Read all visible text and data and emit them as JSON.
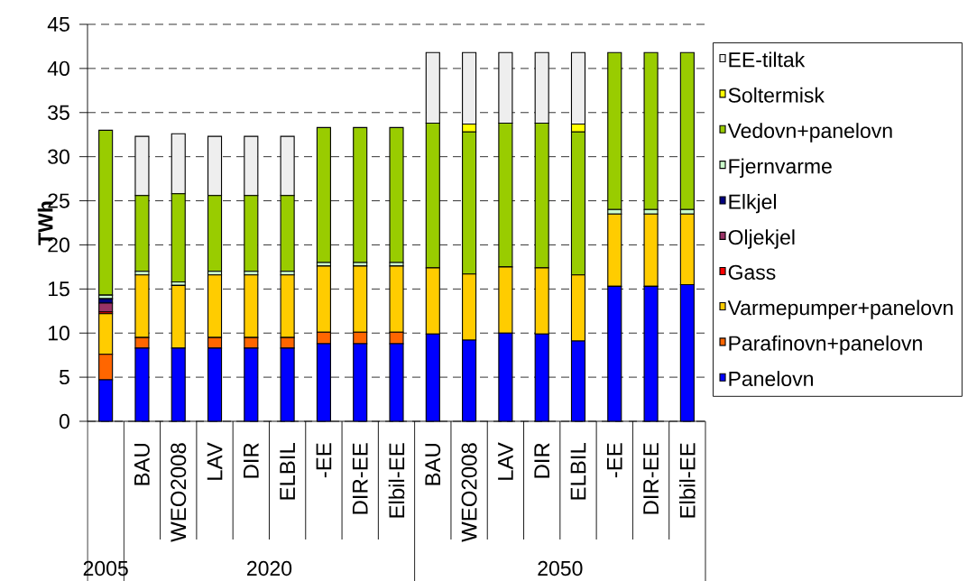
{
  "chart_data": {
    "type": "bar",
    "stacked": true,
    "ylabel": "TWh",
    "categories": [
      null,
      "BAU",
      "WEO2008",
      "LAV",
      "DIR",
      "ELBIL",
      "-EE",
      "DIR-EE",
      "Elbil-EE",
      "BAU",
      "WEO2008",
      "LAV",
      "DIR",
      "ELBIL",
      "-EE",
      "DIR-EE",
      "Elbil-EE"
    ],
    "annotations": [
      "2005",
      "2020",
      "2050"
    ],
    "ylim": [
      0,
      45
    ],
    "yticks": [
      0,
      5,
      10,
      15,
      20,
      25,
      30,
      35,
      40,
      45
    ],
    "grid": "y",
    "legend": "right",
    "series": [
      {
        "name": "Panelovn",
        "color": "#0000ff",
        "values": [
          4.7,
          8.3,
          8.3,
          8.3,
          8.3,
          8.3,
          8.8,
          8.8,
          8.8,
          9.9,
          9.2,
          10.0,
          9.9,
          9.1,
          15.3,
          15.3,
          15.5
        ]
      },
      {
        "name": "Parafinovn+panelovn",
        "color": "#ff6600",
        "values": [
          2.9,
          1.2,
          0,
          1.2,
          1.2,
          1.2,
          1.3,
          1.3,
          1.3,
          0,
          0,
          0,
          0,
          0,
          0,
          0,
          0
        ]
      },
      {
        "name": "Varmepumper+panelovn",
        "color": "#ffcc00",
        "values": [
          4.6,
          7.1,
          7.1,
          7.1,
          7.1,
          7.1,
          7.5,
          7.5,
          7.5,
          7.5,
          7.5,
          7.5,
          7.5,
          7.5,
          8.2,
          8.2,
          8.0
        ]
      },
      {
        "name": "Gass",
        "color": "#ff0000",
        "values": [
          0.2,
          0,
          0,
          0,
          0,
          0,
          0,
          0,
          0,
          0,
          0,
          0,
          0,
          0,
          0,
          0,
          0
        ]
      },
      {
        "name": "Oljekjel",
        "color": "#993366",
        "values": [
          1.0,
          0,
          0,
          0,
          0,
          0,
          0,
          0,
          0,
          0,
          0,
          0,
          0,
          0,
          0,
          0,
          0
        ]
      },
      {
        "name": "Elkjel",
        "color": "#000080",
        "values": [
          0.5,
          0,
          0,
          0,
          0,
          0,
          0,
          0,
          0,
          0,
          0,
          0,
          0,
          0,
          0,
          0,
          0
        ]
      },
      {
        "name": "Fjernvarme",
        "color": "#ccffcc",
        "values": [
          0.4,
          0.4,
          0.4,
          0.4,
          0.4,
          0.4,
          0.4,
          0.4,
          0.4,
          0,
          0,
          0,
          0,
          0,
          0.5,
          0.5,
          0.5
        ]
      },
      {
        "name": "Vedovn+panelovn",
        "color": "#99cc00",
        "values": [
          18.7,
          8.6,
          10.0,
          8.6,
          8.6,
          8.6,
          15.3,
          15.3,
          15.3,
          16.4,
          16.1,
          16.3,
          16.4,
          16.2,
          17.8,
          17.8,
          17.8
        ]
      },
      {
        "name": "Soltermisk",
        "color": "#ffff00",
        "values": [
          0,
          0,
          0,
          0,
          0,
          0,
          0,
          0,
          0,
          0,
          0.9,
          0,
          0,
          0.9,
          0,
          0,
          0
        ]
      },
      {
        "name": "EE-tiltak",
        "color": "#eeeeee",
        "values": [
          0,
          6.7,
          6.8,
          6.7,
          6.7,
          6.7,
          0,
          0,
          0,
          8.0,
          8.1,
          8.0,
          8.0,
          8.1,
          0,
          0,
          0
        ]
      }
    ]
  }
}
